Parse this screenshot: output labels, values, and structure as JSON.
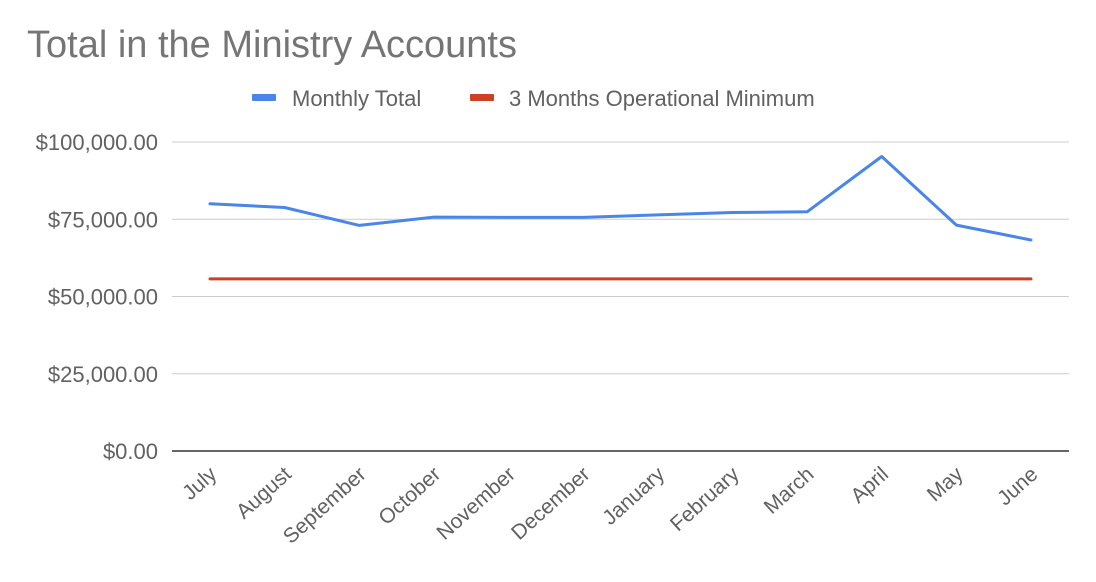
{
  "chart_data": {
    "type": "line",
    "title": "Total in the Ministry Accounts",
    "xlabel": "",
    "ylabel": "",
    "categories": [
      "July",
      "August",
      "September",
      "October",
      "November",
      "December",
      "January",
      "February",
      "March",
      "April",
      "May",
      "June"
    ],
    "series": [
      {
        "name": "Monthly Total",
        "color": "#4a86e8",
        "values": [
          80000,
          78800,
          73000,
          75700,
          75600,
          75600,
          76400,
          77200,
          77400,
          95300,
          73100,
          68300
        ]
      },
      {
        "name": "3 Months Operational Minimum",
        "color": "#cc4125",
        "values": [
          55700,
          55700,
          55700,
          55700,
          55700,
          55700,
          55700,
          55700,
          55700,
          55700,
          55700,
          55700
        ]
      }
    ],
    "ylim": [
      0,
      100000
    ],
    "yticks": [
      0,
      25000,
      50000,
      75000,
      100000
    ],
    "ytick_labels": [
      "$0.00",
      "$25,000.00",
      "$50,000.00",
      "$75,000.00",
      "$100,000.00"
    ],
    "grid": true,
    "legend_position": "top"
  }
}
